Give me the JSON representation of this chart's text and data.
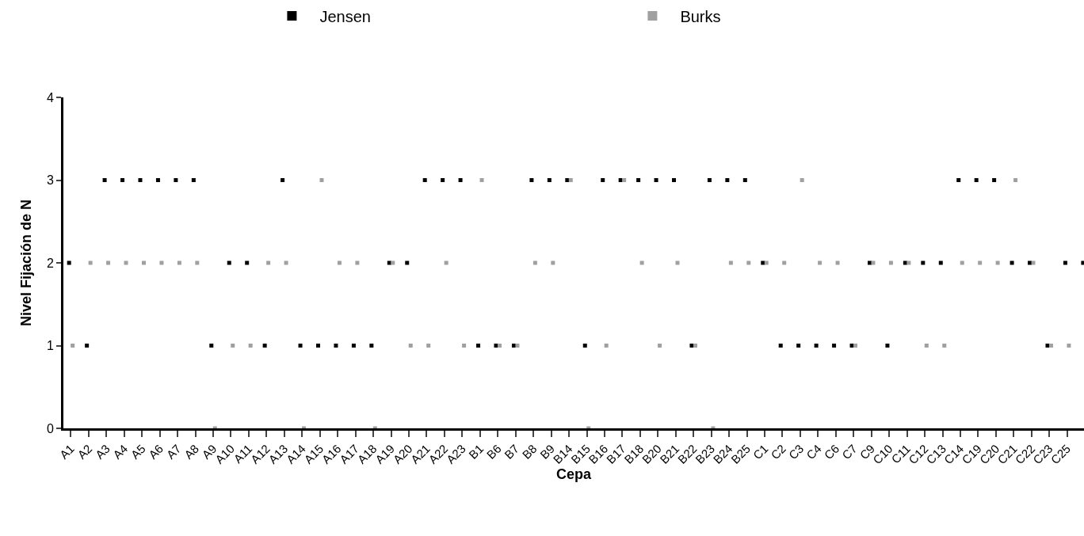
{
  "chart_data": {
    "type": "scatter",
    "xlabel": "Cepa",
    "ylabel": "Nivel Fijación de N",
    "categories": [
      "A1",
      "A2",
      "A3",
      "A4",
      "A5",
      "A6",
      "A7",
      "A8",
      "A9",
      "A10",
      "A11",
      "A12",
      "A13",
      "A14",
      "A15",
      "A16",
      "A17",
      "A18",
      "A19",
      "A20",
      "A21",
      "A22",
      "A23",
      "B1",
      "B6",
      "B7",
      "B8",
      "B9",
      "B14",
      "B15",
      "B16",
      "B17",
      "B18",
      "B20",
      "B21",
      "B22",
      "B23",
      "B24",
      "B25",
      "C1",
      "C2",
      "C3",
      "C4",
      "C6",
      "C7",
      "C9",
      "C10",
      "C11",
      "C12",
      "C13",
      "C14",
      "C19",
      "C20",
      "C21",
      "C22",
      "C23",
      "C25",
      null
    ],
    "series": [
      {
        "name": "Jensen",
        "color": "#000000",
        "values": [
          2,
          1,
          3,
          3,
          3,
          3,
          3,
          3,
          1,
          2,
          2,
          1,
          3,
          1,
          1,
          1,
          1,
          1,
          2,
          2,
          3,
          3,
          3,
          1,
          1,
          1,
          3,
          3,
          3,
          1,
          3,
          3,
          3,
          3,
          3,
          1,
          3,
          3,
          3,
          2,
          1,
          1,
          1,
          1,
          1,
          2,
          1,
          2,
          2,
          2,
          3,
          3,
          3,
          2,
          2,
          1,
          2,
          2
        ]
      },
      {
        "name": "Burks",
        "color": "#a0a0a0",
        "values": [
          1,
          2,
          2,
          2,
          2,
          2,
          2,
          2,
          0,
          1,
          1,
          2,
          2,
          0,
          3,
          2,
          2,
          0,
          2,
          1,
          1,
          2,
          1,
          3,
          1,
          1,
          2,
          2,
          3,
          0,
          1,
          3,
          2,
          1,
          2,
          1,
          0,
          2,
          2,
          2,
          2,
          3,
          2,
          2,
          1,
          2,
          2,
          2,
          1,
          1,
          2,
          2,
          2,
          3,
          2,
          1,
          1,
          null
        ]
      }
    ],
    "ylim": [
      0,
      4
    ],
    "yticks": [
      0,
      1,
      2,
      3,
      4
    ],
    "legend": "top",
    "marker": "square"
  }
}
